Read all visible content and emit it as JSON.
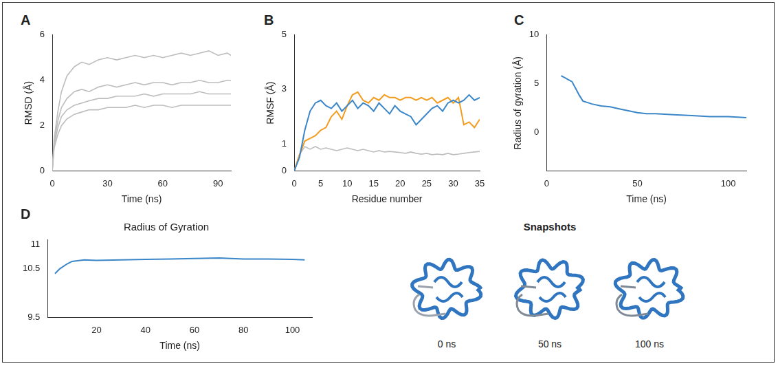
{
  "chart_data": [
    {
      "panel": "A",
      "type": "line",
      "x_label": "Time (ns)",
      "y_label": "RMSD (Å)",
      "x": [
        0,
        1,
        3,
        5,
        8,
        12,
        16,
        20,
        25,
        30,
        35,
        40,
        45,
        50,
        55,
        60,
        65,
        70,
        75,
        80,
        85,
        90,
        95,
        97
      ],
      "series": [
        {
          "color": "#bdbdbd",
          "values": [
            0,
            1.4,
            2.6,
            3.5,
            4.2,
            4.6,
            4.8,
            4.7,
            4.9,
            5.0,
            4.9,
            5.0,
            5.1,
            5.0,
            5.1,
            5.0,
            5.1,
            5.2,
            5.1,
            5.2,
            5.3,
            5.1,
            5.2,
            5.1
          ]
        },
        {
          "color": "#bdbdbd",
          "values": [
            0,
            1.2,
            2.2,
            2.8,
            3.2,
            3.5,
            3.6,
            3.5,
            3.7,
            3.8,
            3.7,
            3.8,
            3.9,
            3.8,
            3.9,
            3.9,
            3.8,
            3.9,
            3.9,
            4.0,
            3.9,
            3.9,
            4.0,
            4.0
          ]
        },
        {
          "color": "#bdbdbd",
          "values": [
            0,
            1.1,
            1.9,
            2.4,
            2.7,
            2.9,
            3.0,
            3.1,
            3.2,
            3.2,
            3.3,
            3.3,
            3.3,
            3.4,
            3.3,
            3.4,
            3.4,
            3.4,
            3.4,
            3.5,
            3.4,
            3.4,
            3.4,
            3.4
          ]
        },
        {
          "color": "#bdbdbd",
          "values": [
            0,
            1.0,
            1.6,
            2.0,
            2.3,
            2.5,
            2.6,
            2.7,
            2.7,
            2.8,
            2.8,
            2.8,
            2.9,
            2.8,
            2.9,
            2.9,
            2.8,
            2.9,
            2.9,
            2.9,
            2.9,
            2.9,
            2.9,
            2.9
          ]
        }
      ],
      "xlim": [
        0,
        97
      ],
      "xticks": [
        0,
        30,
        60,
        90
      ],
      "ylim": [
        0,
        6
      ],
      "yticks": [
        0,
        2,
        4,
        6
      ],
      "grid": false
    },
    {
      "panel": "B",
      "type": "line",
      "x_label": "Residue number",
      "y_label": "RMSF (Å)",
      "x": [
        0,
        1,
        2,
        3,
        4,
        5,
        6,
        7,
        8,
        9,
        10,
        11,
        12,
        13,
        14,
        15,
        16,
        17,
        18,
        19,
        20,
        21,
        22,
        23,
        24,
        25,
        26,
        27,
        28,
        29,
        30,
        31,
        32,
        33,
        34,
        35
      ],
      "series": [
        {
          "color": "#3a86c8",
          "values": [
            0,
            0.5,
            1.5,
            2.2,
            2.5,
            2.6,
            2.4,
            2.3,
            2.5,
            2.2,
            2.4,
            2.6,
            2.3,
            2.5,
            2.4,
            2.2,
            2.5,
            2.3,
            2.1,
            2.4,
            2.2,
            2.1,
            2.0,
            1.7,
            1.9,
            2.1,
            2.3,
            2.4,
            2.2,
            2.5,
            2.6,
            2.5,
            2.6,
            2.8,
            2.6,
            2.7
          ]
        },
        {
          "color": "#f39c1f",
          "values": [
            0,
            0.6,
            1.1,
            1.2,
            1.3,
            1.5,
            1.6,
            2.0,
            2.2,
            1.9,
            2.4,
            2.8,
            2.9,
            2.6,
            2.5,
            2.7,
            2.6,
            2.8,
            2.7,
            2.7,
            2.6,
            2.7,
            2.7,
            2.6,
            2.7,
            2.6,
            2.7,
            2.5,
            2.6,
            2.7,
            2.5,
            2.7,
            1.7,
            1.8,
            1.6,
            1.9
          ]
        },
        {
          "color": "#bdbdbd",
          "values": [
            0,
            0.6,
            0.9,
            0.8,
            0.9,
            0.8,
            0.85,
            0.8,
            0.75,
            0.8,
            0.85,
            0.8,
            0.75,
            0.8,
            0.75,
            0.7,
            0.75,
            0.7,
            0.72,
            0.7,
            0.68,
            0.65,
            0.7,
            0.65,
            0.62,
            0.65,
            0.6,
            0.62,
            0.6,
            0.65,
            0.6,
            0.62,
            0.65,
            0.68,
            0.7,
            0.72
          ]
        }
      ],
      "xlim": [
        0,
        35
      ],
      "xticks": [
        0,
        5,
        10,
        15,
        20,
        25,
        30,
        35
      ],
      "ylim": [
        0,
        5
      ],
      "yticks": [
        0,
        1,
        3,
        5
      ],
      "grid": false
    },
    {
      "panel": "C",
      "type": "line",
      "x_label": "Time (ns)",
      "y_label": "Radius of gyration (Å)",
      "x": [
        8,
        10,
        12,
        14,
        16,
        18,
        20,
        25,
        30,
        35,
        40,
        45,
        50,
        55,
        60,
        70,
        80,
        90,
        100,
        110
      ],
      "series": [
        {
          "color": "#3a86c8",
          "values": [
            5.8,
            5.6,
            5.4,
            5.2,
            4.5,
            3.8,
            3.2,
            2.9,
            2.7,
            2.6,
            2.4,
            2.2,
            2.0,
            1.9,
            1.9,
            1.8,
            1.7,
            1.6,
            1.6,
            1.5
          ]
        }
      ],
      "xlim": [
        0,
        110
      ],
      "xticks": [
        0,
        50,
        100
      ],
      "ylim": [
        -4,
        10
      ],
      "yticks": [
        0,
        5,
        10
      ],
      "grid": false
    },
    {
      "panel": "D",
      "type": "line",
      "title": "Radius of Gyration",
      "x_label": "Time (ns)",
      "x": [
        3,
        5,
        8,
        10,
        15,
        20,
        30,
        40,
        50,
        60,
        70,
        80,
        90,
        100,
        105
      ],
      "series": [
        {
          "color": "#3a86c8",
          "values": [
            10.4,
            10.5,
            10.6,
            10.65,
            10.68,
            10.67,
            10.68,
            10.69,
            10.7,
            10.71,
            10.72,
            10.7,
            10.7,
            10.69,
            10.68
          ]
        }
      ],
      "xlim": [
        0,
        108
      ],
      "xticks": [
        20,
        40,
        60,
        80,
        100
      ],
      "ylim": [
        9.5,
        11.1
      ],
      "yticks": [
        9.5,
        10.5,
        11
      ],
      "grid": false
    }
  ],
  "snapshots": {
    "title": "Snapshots",
    "labels": [
      "0 ns",
      "50 ns",
      "100 ns"
    ]
  }
}
